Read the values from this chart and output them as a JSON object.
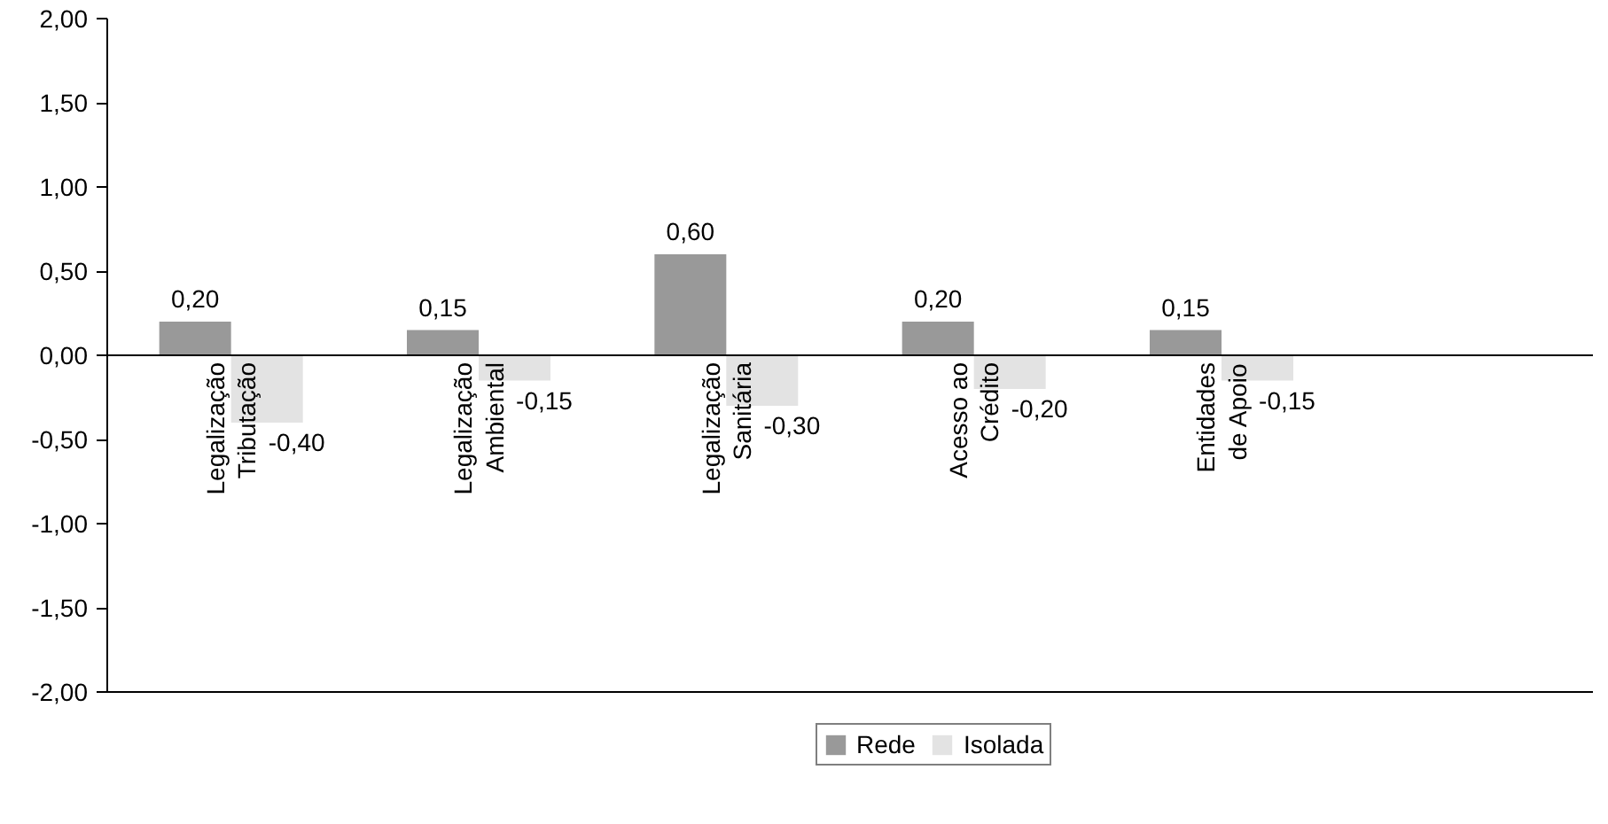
{
  "chart_data": {
    "type": "bar",
    "categories": [
      "Legalização\nTributação",
      "Legalização\nAmbiental",
      "Legalização\nSanitária",
      "Acesso ao\nCrédito",
      "Entidades\nde Apoio",
      null
    ],
    "series": [
      {
        "name": "Rede",
        "color": "#999999",
        "values": [
          0.2,
          0.15,
          0.6,
          0.2,
          0.15,
          null
        ],
        "value_labels": [
          "0,20",
          "0,15",
          "0,60",
          "0,20",
          "0,15",
          null
        ]
      },
      {
        "name": "Isolada",
        "color": "#e3e3e3",
        "values": [
          -0.4,
          -0.15,
          -0.3,
          -0.2,
          -0.15,
          null
        ],
        "value_labels": [
          "-0,40",
          "-0,15",
          "-0,30",
          "-0,20",
          "-0,15",
          null
        ]
      }
    ],
    "ylim": [
      -2,
      2
    ],
    "yticks": [
      {
        "value": -2,
        "label": "-2,00"
      },
      {
        "value": -1.5,
        "label": "-1,50"
      },
      {
        "value": -1,
        "label": "-1,00"
      },
      {
        "value": -0.5,
        "label": "-0,50"
      },
      {
        "value": 0,
        "label": "0,00"
      },
      {
        "value": 0.5,
        "label": "0,50"
      },
      {
        "value": 1,
        "label": "1,00"
      },
      {
        "value": 1.5,
        "label": "1,50"
      },
      {
        "value": 2,
        "label": "2,00"
      }
    ],
    "grid": false,
    "legend": "bottom"
  }
}
